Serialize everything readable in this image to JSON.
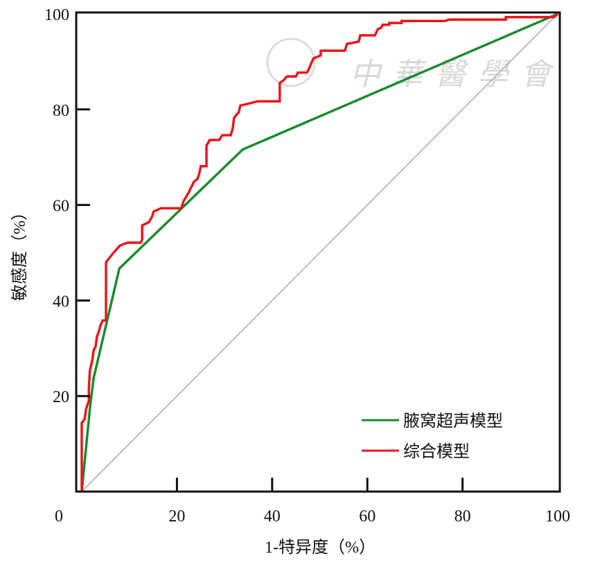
{
  "chart_data": {
    "type": "line",
    "title": "",
    "xlabel": "1-特异度（%）",
    "ylabel": "敏感度（%）",
    "xlim": [
      0,
      100
    ],
    "ylim": [
      0,
      100
    ],
    "xticks": [
      0,
      20,
      40,
      60,
      80,
      100
    ],
    "yticks": [
      20,
      40,
      60,
      80,
      100
    ],
    "xtick_labels": [
      "0",
      "20",
      "40",
      "60",
      "80",
      "100"
    ],
    "ytick_labels": [
      "20",
      "40",
      "60",
      "80",
      "100"
    ],
    "grid": false,
    "legend_position": "bottom-right",
    "watermark": "中華醫學會",
    "reference_line": {
      "x": [
        0,
        100
      ],
      "y": [
        0,
        100
      ],
      "color": "#aaaaaa"
    },
    "series": [
      {
        "name": "腋窝超声模型",
        "color": "#1a8a2e",
        "x": [
          0,
          1.7,
          2.5,
          7.9,
          33.8,
          100
        ],
        "y": [
          0,
          17.3,
          23.8,
          46.7,
          71.6,
          100
        ]
      },
      {
        "name": "综合模型",
        "color": "#e8161b",
        "x": [
          0,
          0,
          0.6,
          0.9,
          1.5,
          1.5,
          1.7,
          2.2,
          2.5,
          2.9,
          3.2,
          3.6,
          3.9,
          4.4,
          5.1,
          5.1,
          5.8,
          6.6,
          7.3,
          7.9,
          8.7,
          9.7,
          12.4,
          12.7,
          12.7,
          14.1,
          14.8,
          15.1,
          16.6,
          20.9,
          21.4,
          21.8,
          22.4,
          23.0,
          23.6,
          24.3,
          24.7,
          25.0,
          26.2,
          26.2,
          26.9,
          28.9,
          29.5,
          31.3,
          31.7,
          32.0,
          32.5,
          33.0,
          33.3,
          34.6,
          37.0,
          41.6,
          41.6,
          42.5,
          43.1,
          45.0,
          45.4,
          47.3,
          47.7,
          48.2,
          48.7,
          50.2,
          50.2,
          55.3,
          55.7,
          58.2,
          58.5,
          61.6,
          62.2,
          62.9,
          63.2,
          64.6,
          64.6,
          67.2,
          67.2,
          76.3,
          77.1,
          89.1,
          89.1,
          99.3,
          100
        ],
        "y": [
          0,
          14.4,
          15.1,
          17.3,
          19.0,
          21.6,
          25.3,
          27.4,
          29.6,
          30.3,
          32.5,
          33.5,
          34.7,
          35.8,
          35.8,
          48.0,
          48.9,
          49.9,
          50.7,
          51.4,
          51.8,
          52.1,
          52.1,
          52.8,
          55.7,
          56.4,
          57.6,
          58.6,
          59.3,
          59.3,
          60.8,
          61.5,
          62.5,
          63.7,
          64.9,
          65.4,
          66.6,
          68.1,
          68.1,
          72.4,
          73.6,
          73.6,
          74.6,
          74.6,
          76.0,
          78.2,
          78.9,
          79.4,
          80.8,
          81.1,
          81.7,
          81.7,
          85.5,
          86.2,
          86.9,
          86.9,
          87.7,
          87.7,
          88.4,
          89.6,
          90.7,
          91.3,
          92.3,
          92.3,
          93.7,
          94.2,
          95.5,
          95.5,
          96.8,
          97.1,
          97.7,
          97.7,
          98.1,
          98.1,
          98.5,
          98.5,
          98.8,
          98.8,
          99.3,
          99.3,
          100
        ]
      }
    ]
  }
}
